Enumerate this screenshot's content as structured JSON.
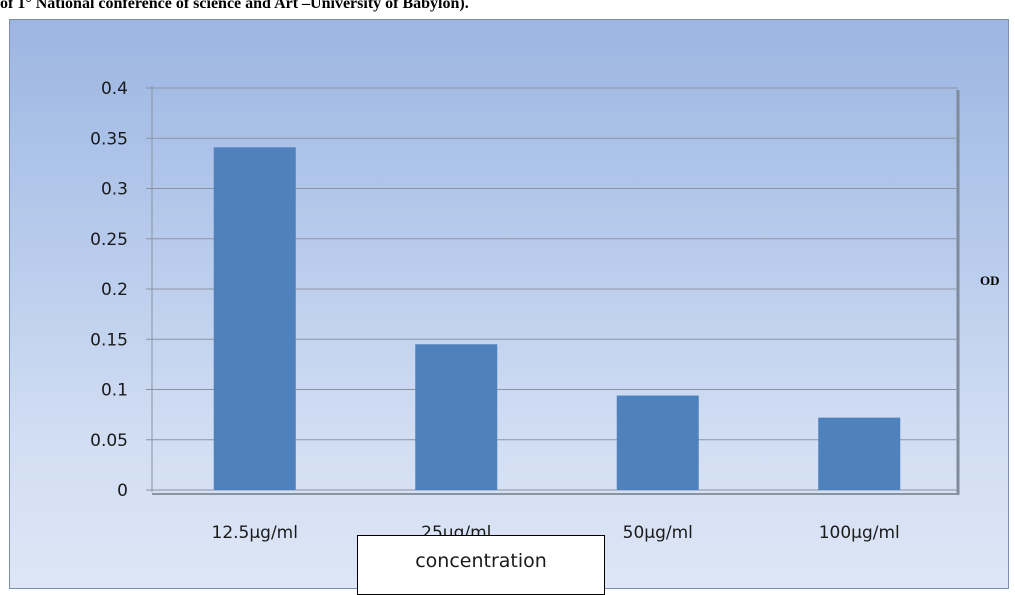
{
  "header": {
    "text": "of 1° National conference of science and Art –University of Babylon)."
  },
  "chart_data": {
    "type": "bar",
    "title": "",
    "categories": [
      "12.5µg/ml",
      "25µg/ml",
      "50µg/ml",
      "100µg/ml"
    ],
    "values": [
      0.341,
      0.145,
      0.094,
      0.072
    ],
    "xlabel": "concentration",
    "ylabel": "OD",
    "ylim": [
      0,
      0.4
    ],
    "yticks": [
      "0",
      "0.05",
      "0.1",
      "0.15",
      "0.2",
      "0.25",
      "0.3",
      "0.35",
      "0.4"
    ],
    "grid": true,
    "bar_color": "#4f81bd"
  }
}
